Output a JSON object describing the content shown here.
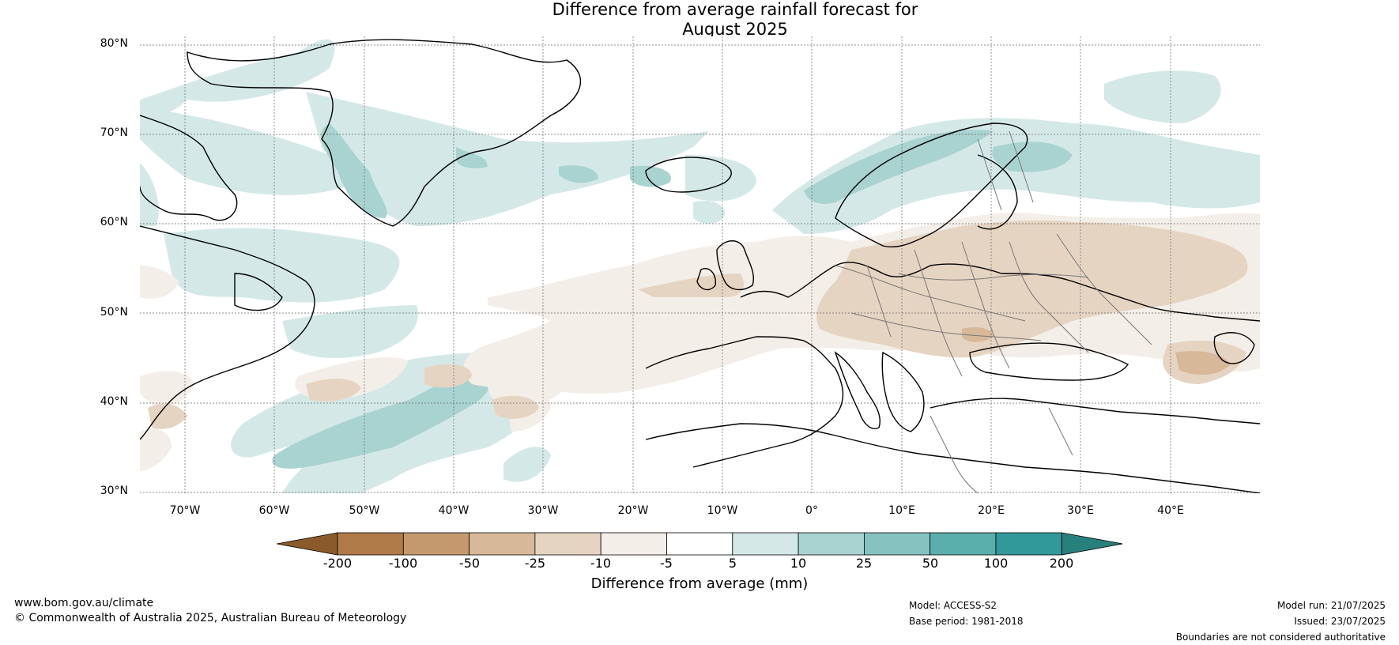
{
  "title": {
    "line1": "Difference from average rainfall forecast for",
    "line2": "August 2025"
  },
  "map": {
    "latitudes": [
      "80°N",
      "70°N",
      "60°N",
      "50°N",
      "40°N",
      "30°N"
    ],
    "longitudes": [
      "70°W",
      "60°W",
      "50°W",
      "40°W",
      "30°W",
      "20°W",
      "10°W",
      "0°",
      "10°E",
      "20°E",
      "30°E",
      "40°E"
    ],
    "lat_range": [
      30,
      81
    ],
    "lon_range": [
      -75,
      50
    ],
    "gridlines": "dotted"
  },
  "colorbar": {
    "ticks": [
      "-200",
      "-100",
      "-50",
      "-25",
      "-10",
      "-5",
      "5",
      "10",
      "25",
      "50",
      "100",
      "200"
    ],
    "colors": [
      "#8b5a2b",
      "#b07a48",
      "#c4996e",
      "#d7b898",
      "#e6d4c2",
      "#f3eee8",
      "#ffffff",
      "#d4e9e7",
      "#a9d3d1",
      "#85c2c0",
      "#5aaeab",
      "#32999a",
      "#28807d"
    ],
    "label": "Difference from average (mm)"
  },
  "footer": {
    "website": "www.bom.gov.au/climate",
    "copyright": "© Commonwealth of Australia 2025, Australian Bureau of Meteorology",
    "model": "Model: ACCESS-S2",
    "base_period": "Base period: 1981-2018",
    "model_run": "Model run: 21/07/2025",
    "issued": "Issued: 23/07/2025",
    "disclaimer": "Boundaries are not considered authoritative"
  }
}
